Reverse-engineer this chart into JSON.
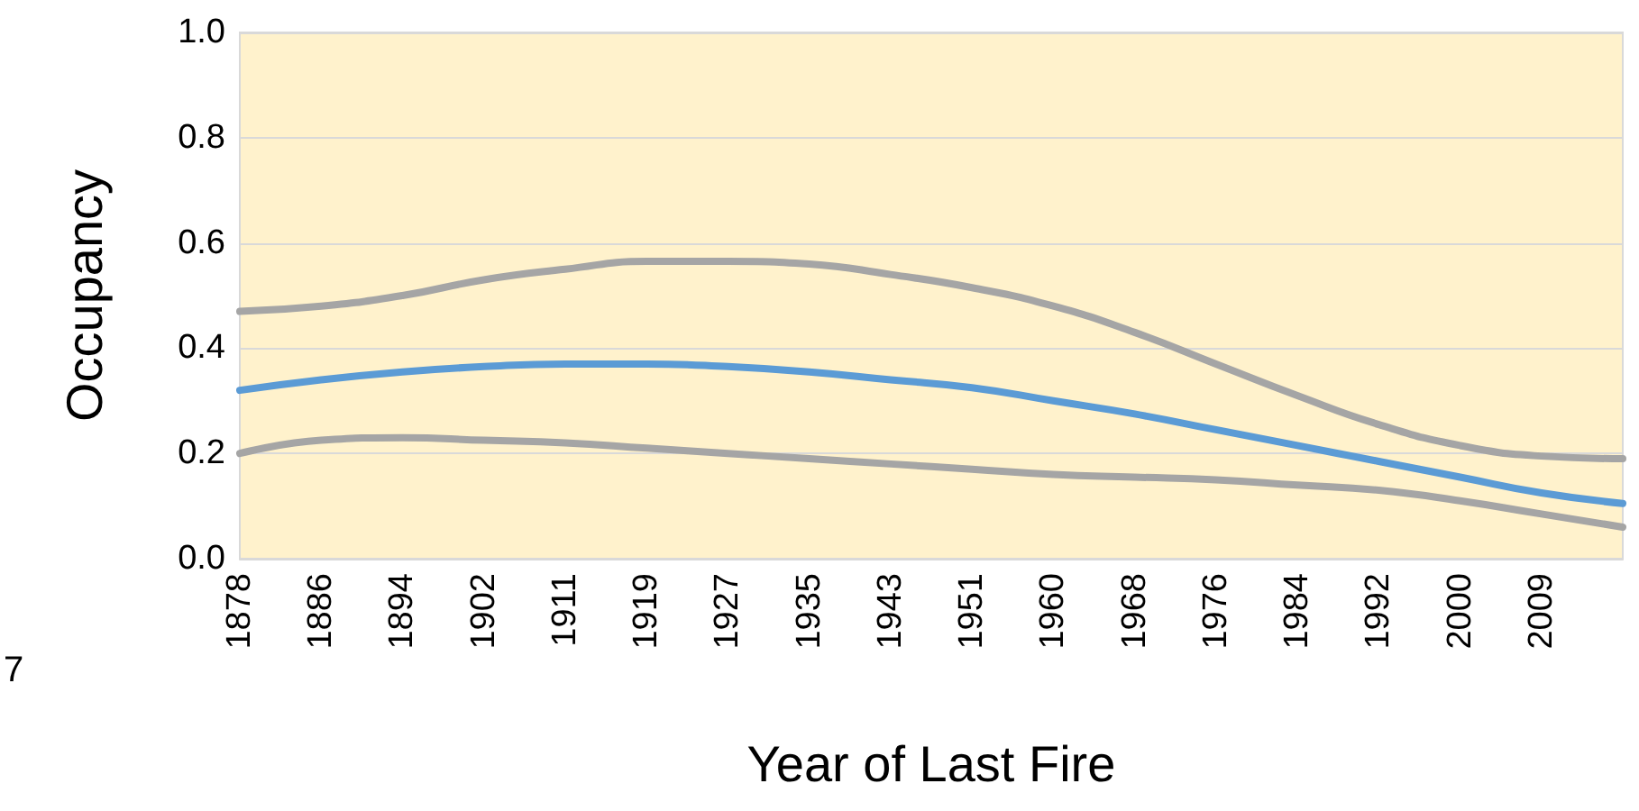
{
  "chart_data": {
    "type": "line",
    "xlabel": "Year of Last Fire",
    "ylabel": "Occupancy",
    "categories": [
      "1878",
      "1886",
      "1894",
      "1902",
      "1911",
      "1919",
      "1927",
      "1935",
      "1943",
      "1951",
      "1960",
      "1968",
      "1976",
      "1984",
      "1992",
      "2000",
      "2009",
      null
    ],
    "series": [
      {
        "color": "#a5a5a5",
        "values": [
          0.47,
          0.48,
          0.5,
          0.53,
          0.55,
          0.565,
          0.565,
          0.56,
          0.54,
          0.515,
          0.48,
          0.43,
          0.37,
          0.31,
          0.255,
          0.215,
          0.195,
          0.19
        ]
      },
      {
        "color": "#a5a5a5",
        "values": [
          0.2,
          0.225,
          0.23,
          0.225,
          0.22,
          0.21,
          0.2,
          0.19,
          0.18,
          0.17,
          0.16,
          0.155,
          0.15,
          0.14,
          0.13,
          0.11,
          0.085,
          0.06
        ]
      },
      {
        "color": "#5b9bd5",
        "values": [
          0.32,
          0.34,
          0.355,
          0.365,
          0.37,
          0.37,
          0.365,
          0.355,
          0.34,
          0.325,
          0.3,
          0.275,
          0.245,
          0.215,
          0.185,
          0.155,
          0.125,
          0.105
        ]
      }
    ],
    "ylim": [
      0,
      1
    ],
    "yticks": [
      {
        "value": 0,
        "label": "0.0"
      },
      {
        "value": 0.2,
        "label": "0.2"
      },
      {
        "value": 0.4,
        "label": "0.4"
      },
      {
        "value": 0.6,
        "label": "0.6"
      },
      {
        "value": 0.8,
        "label": "0.8"
      },
      {
        "value": 1,
        "label": "1.0"
      }
    ],
    "grid": "y",
    "marker": "none",
    "line_style": "solid",
    "annotations": [
      "7"
    ]
  }
}
